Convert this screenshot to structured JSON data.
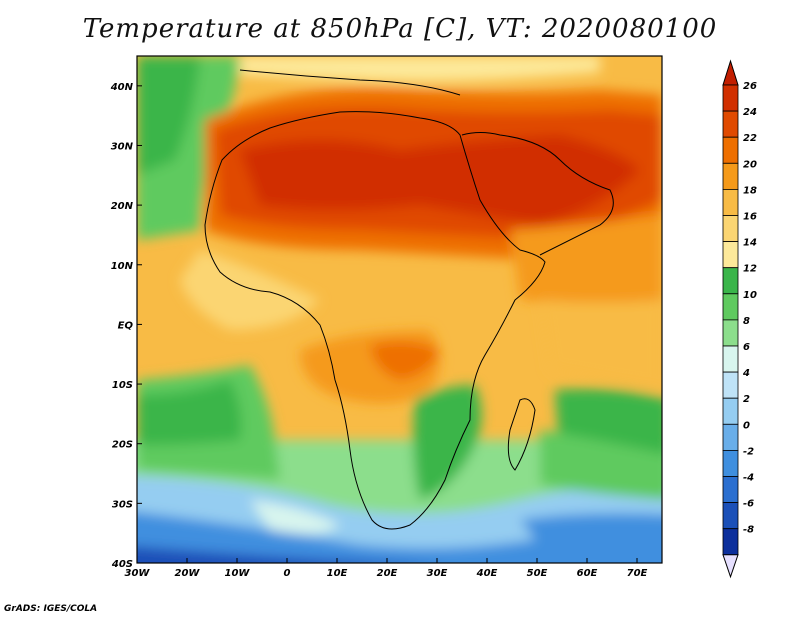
{
  "title": "Temperature at 850hPa [C], VT: 2020080100",
  "credit": "GrADS: IGES/COLA",
  "map": {
    "region": "Africa and surrounding oceans",
    "variable": "Temperature at 850hPa",
    "units": "C",
    "lon_range": [
      -30,
      75
    ],
    "lat_range": [
      -40,
      45
    ],
    "lon_ticks": [
      "30W",
      "20W",
      "10W",
      "0",
      "10E",
      "20E",
      "30E",
      "40E",
      "50E",
      "60E",
      "70E"
    ],
    "lat_ticks": [
      "40S",
      "30S",
      "20S",
      "10S",
      "EQ",
      "10N",
      "20N",
      "30N",
      "40N"
    ]
  },
  "colorbar": {
    "labels": [
      "26",
      "24",
      "22",
      "20",
      "18",
      "16",
      "14",
      "12",
      "10",
      "8",
      "6",
      "4",
      "2",
      "0",
      "-2",
      "-4",
      "-6",
      "-8"
    ],
    "colors": [
      "#d12f00",
      "#e04a00",
      "#ee6f00",
      "#f59a1a",
      "#f8bb45",
      "#fbd572",
      "#fde99a",
      "#3ab54a",
      "#5fca5f",
      "#8cde8c",
      "#d8f5ee",
      "#bfe3f7",
      "#95cdf1",
      "#69aee9",
      "#3f8fdf",
      "#2b6fd0",
      "#1b50b8",
      "#0c2f9c"
    ],
    "top_arrow_color": "#c21e00",
    "bottom_arrow_color": "#e6e0ff"
  }
}
